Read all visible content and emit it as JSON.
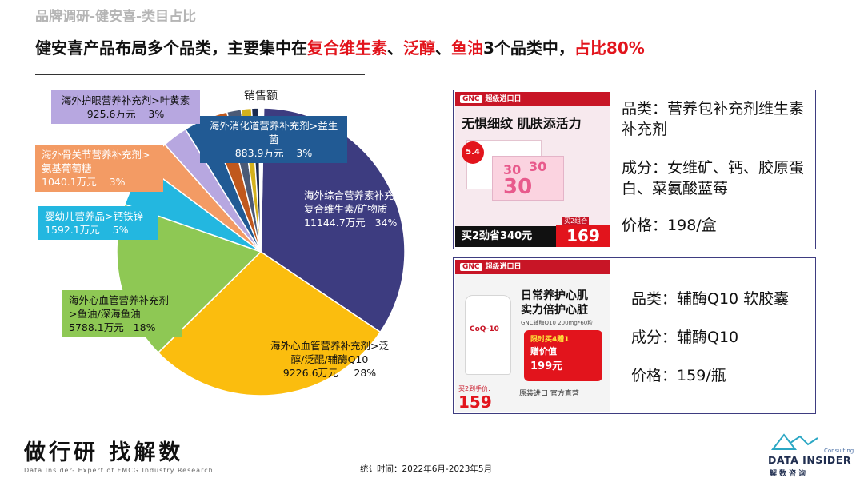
{
  "header": {
    "breadcrumb": "品牌调研-健安喜-类目占比",
    "headline_parts": [
      "健安喜产品布局多个品类，主要集中在",
      "复合维生素",
      "、",
      "泛醇",
      "、",
      "鱼油",
      "3个品类中，",
      "占比80%"
    ]
  },
  "chart_data": {
    "type": "pie",
    "title": "销售额",
    "unit": "万元",
    "slices": [
      {
        "category": "海外综合营养素补充剂>复合维生素/矿物质",
        "label_lines": [
          "海外综合营养素补充剂>",
          "复合维生素/矿物质"
        ],
        "value": 11144.7,
        "value_text": "11144.7万元",
        "percent": "34%",
        "color": "#3d3c80"
      },
      {
        "category": "海外心血管营养补充剂>泛醇/泛醌/辅酶Q10",
        "label_lines": [
          "海外心血管营养补充剂>泛",
          "醇/泛醌/辅酶Q10"
        ],
        "value": 9226.6,
        "value_text": "9226.6万元",
        "percent": "28%",
        "color": "#fbbd0e"
      },
      {
        "category": "海外心血管营养补充剂>鱼油/深海鱼油",
        "label_lines": [
          "海外心血管营养补充剂",
          ">鱼油/深海鱼油"
        ],
        "value": 5788.1,
        "value_text": "5788.1万元",
        "percent": "18%",
        "color": "#8ec854"
      },
      {
        "category": "婴幼儿营养品>钙铁锌",
        "label_lines": [
          "婴幼儿营养品>钙铁锌"
        ],
        "value": 1592.1,
        "value_text": "1592.1万元",
        "percent": "5%",
        "color": "#23b7e0"
      },
      {
        "category": "海外骨关节营养补充剂>氨基葡萄糖",
        "label_lines": [
          "海外骨关节营养补充剂>",
          "氨基葡萄糖"
        ],
        "value": 1040.1,
        "value_text": "1040.1万元",
        "percent": "3%",
        "color": "#f39b64"
      },
      {
        "category": "海外护眼营养补充剂>叶黄素",
        "label_lines": [
          "海外护眼营养补充剂>叶黄素"
        ],
        "value": 925.6,
        "value_text": "925.6万元",
        "percent": "3%",
        "color": "#b7a7e0"
      },
      {
        "category": "海外消化道营养补充剂>益生菌",
        "label_lines": [
          "海外消化道营养补充剂>益生菌"
        ],
        "value": 883.9,
        "value_text": "883.9万元",
        "percent": "3%",
        "color": "#215a94"
      },
      {
        "category": "",
        "label_lines": [],
        "value": 750,
        "value_text": "",
        "percent": "",
        "color": "#c0581d"
      },
      {
        "category": "",
        "label_lines": [],
        "value": 520,
        "value_text": "",
        "percent": "",
        "color": "#4b5a76"
      },
      {
        "category": "",
        "label_lines": [],
        "value": 380,
        "value_text": "",
        "percent": "",
        "color": "#d4b11c"
      },
      {
        "category": "",
        "label_lines": [],
        "value": 260,
        "value_text": "",
        "percent": "",
        "color": "#1b2a4f"
      },
      {
        "category": "",
        "label_lines": [],
        "value": 180,
        "value_text": "",
        "percent": "",
        "color": "#ffffff"
      }
    ]
  },
  "products": [
    {
      "image": {
        "brand_bar": "超级进口日",
        "logo": "GNC",
        "slogan": "无惧细纹 肌肤添活力",
        "tag_a": "30",
        "tag_b": "30",
        "tag_c": "30",
        "badge": "5.4",
        "promo": "买2劲省340元",
        "price": "169",
        "price_tag": "买2组合"
      },
      "spec_category_label": "品类：",
      "spec_category": "营养包补充剂维生素补充剂",
      "spec_ingredient_label": "成分：",
      "spec_ingredient": "女维矿、钙、胶原蛋白、菜氨酸蓝莓",
      "spec_price_label": "价格：",
      "spec_price": "198/盒"
    },
    {
      "image": {
        "brand_bar": "超级进口日",
        "logo": "GNC",
        "slogan_1": "日常养护心肌",
        "slogan_2": "实力倍护心脏",
        "bottle_text": "CoQ-10",
        "sub_text": "GNC辅酶Q10 200mg*60粒",
        "promo_1": "限时买4赠1",
        "promo_2": "赠价值",
        "promo_3": "199元",
        "footer": "原装进口 官方直营",
        "price_label": "买2到手价:",
        "price": "159"
      },
      "spec_category_label": "品类：",
      "spec_category": "辅酶Q10 软胶囊",
      "spec_ingredient_label": "成分：",
      "spec_ingredient": "辅酶Q10",
      "spec_price_label": "价格：",
      "spec_price": "159/瓶"
    }
  ],
  "footer": {
    "slogan": "做行研 找解数",
    "sub_slogan": "Data Insider- Expert of FMCG Industry Research",
    "stat_time": "统计时间：2022年6月-2023年5月",
    "brand_name": "DATA INSIDER",
    "brand_cn": "解数咨询",
    "brand_tag": "Consulting"
  }
}
